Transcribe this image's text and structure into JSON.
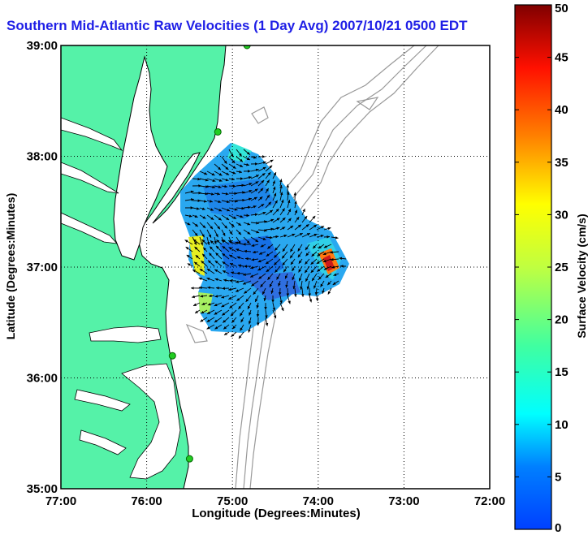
{
  "title": "Southern Mid-Atlantic Raw Velocities (1 Day Avg) 2007/10/21 0500 EDT",
  "axes": {
    "xlabel": "Longitude (Degrees:Minutes)",
    "ylabel": "Latitude (Degrees:Minutes)",
    "xticks": [
      "77:00",
      "76:00",
      "75:00",
      "74:00",
      "73:00",
      "72:00"
    ],
    "yticks": [
      "39:00",
      "38:00",
      "37:00",
      "36:00",
      "35:00"
    ],
    "xrange": [
      -77,
      -72
    ],
    "yrange": [
      35,
      39
    ],
    "grid": "dotted"
  },
  "colorbar": {
    "label": "Surface Velocity (cm/s)",
    "ticks": [
      "0",
      "5",
      "10",
      "15",
      "20",
      "25",
      "30",
      "35",
      "40",
      "45",
      "50"
    ],
    "range": [
      0,
      50
    ],
    "colormap": "jet"
  },
  "colors": {
    "land": "#55f2a8",
    "title": "#1f1fe6",
    "coast_line": "#000000",
    "bathymetry_contour": "#999999",
    "station_marker": "#22cc22"
  },
  "stations": [
    {
      "lon": -74.83,
      "lat": 39.0
    },
    {
      "lon": -75.17,
      "lat": 38.22
    },
    {
      "lon": -75.7,
      "lat": 36.2
    },
    {
      "lon": -75.5,
      "lat": 35.27
    }
  ]
}
